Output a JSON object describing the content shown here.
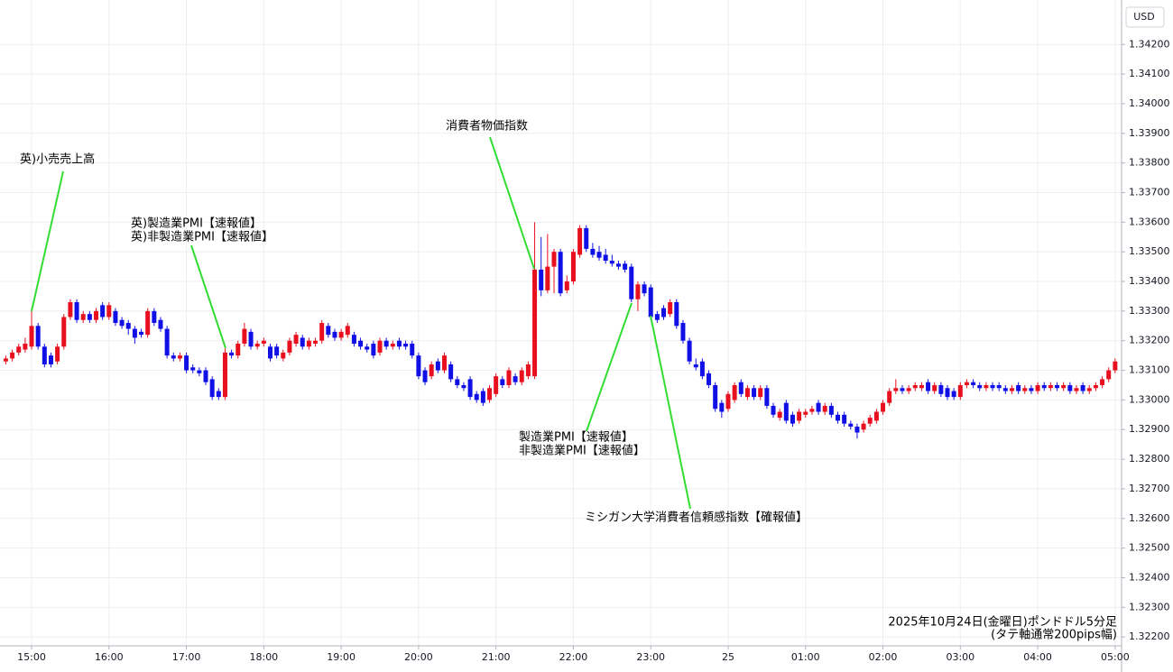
{
  "chart_data": {
    "type": "candlestick",
    "axis_unit": "USD",
    "footnote": [
      "2025年10月24日(金曜日)ポンドドル5分足",
      "(タテ軸通常200pips幅)"
    ],
    "up_color": "#e8101e",
    "down_color": "#1010e6",
    "annotation_color": "#33dd33",
    "grid": true,
    "xlim": [
      -0.9,
      173
    ],
    "xticks": [
      {
        "value": 4,
        "label": "15:00"
      },
      {
        "value": 16,
        "label": "16:00"
      },
      {
        "value": 28,
        "label": "17:00"
      },
      {
        "value": 40,
        "label": "18:00"
      },
      {
        "value": 52,
        "label": "19:00"
      },
      {
        "value": 64,
        "label": "20:00"
      },
      {
        "value": 76,
        "label": "21:00"
      },
      {
        "value": 88,
        "label": "22:00"
      },
      {
        "value": 100,
        "label": "23:00"
      },
      {
        "value": 112,
        "label": "25"
      },
      {
        "value": 124,
        "label": "01:00"
      },
      {
        "value": 136,
        "label": "02:00"
      },
      {
        "value": 148,
        "label": "03:00"
      },
      {
        "value": 160,
        "label": "04:00"
      },
      {
        "value": 172,
        "label": "05:00"
      }
    ],
    "ylim": [
      1.3217,
      1.3435
    ],
    "yticks": [
      {
        "value": 1.342,
        "label": "1.34200"
      },
      {
        "value": 1.341,
        "label": "1.34100"
      },
      {
        "value": 1.34,
        "label": "1.34000"
      },
      {
        "value": 1.339,
        "label": "1.33900"
      },
      {
        "value": 1.338,
        "label": "1.33800"
      },
      {
        "value": 1.337,
        "label": "1.33700"
      },
      {
        "value": 1.336,
        "label": "1.33600"
      },
      {
        "value": 1.335,
        "label": "1.33500"
      },
      {
        "value": 1.334,
        "label": "1.33400"
      },
      {
        "value": 1.333,
        "label": "1.33300"
      },
      {
        "value": 1.332,
        "label": "1.33200"
      },
      {
        "value": 1.331,
        "label": "1.33100"
      },
      {
        "value": 1.33,
        "label": "1.33000"
      },
      {
        "value": 1.329,
        "label": "1.32900"
      },
      {
        "value": 1.328,
        "label": "1.32800"
      },
      {
        "value": 1.327,
        "label": "1.32700"
      },
      {
        "value": 1.326,
        "label": "1.32600"
      },
      {
        "value": 1.325,
        "label": "1.32500"
      },
      {
        "value": 1.324,
        "label": "1.32400"
      },
      {
        "value": 1.323,
        "label": "1.32300"
      },
      {
        "value": 1.322,
        "label": "1.32200"
      }
    ],
    "annotations": [
      {
        "lines": [
          "英)小売売上高"
        ]
      },
      {
        "lines": [
          "英)製造業PMI【速報値】",
          "英)非製造業PMI【速報値】"
        ]
      },
      {
        "lines": [
          "消費者物価指数"
        ]
      },
      {
        "lines": [
          "製造業PMI【速報値】",
          "非製造業PMI【速報値】"
        ]
      },
      {
        "lines": [
          "ミシガン大学消費者信頼感指数【確報値】"
        ]
      }
    ],
    "candles": [
      [
        1.3313,
        1.3315,
        1.3312,
        1.3314
      ],
      [
        1.3314,
        1.3317,
        1.3313,
        1.3316
      ],
      [
        1.3316,
        1.3319,
        1.3315,
        1.3318
      ],
      [
        1.3317,
        1.3321,
        1.3316,
        1.3319
      ],
      [
        1.3318,
        1.3331,
        1.3317,
        1.3325
      ],
      [
        1.3325,
        1.3326,
        1.3317,
        1.3318
      ],
      [
        1.3318,
        1.3319,
        1.3311,
        1.3312
      ],
      [
        1.3315,
        1.3316,
        1.3311,
        1.3312
      ],
      [
        1.3313,
        1.3319,
        1.3312,
        1.3318
      ],
      [
        1.3318,
        1.3329,
        1.3317,
        1.3328
      ],
      [
        1.3328,
        1.3334,
        1.3327,
        1.3333
      ],
      [
        1.3333,
        1.3334,
        1.3326,
        1.3327
      ],
      [
        1.3327,
        1.333,
        1.3326,
        1.3329
      ],
      [
        1.3329,
        1.333,
        1.3326,
        1.3327
      ],
      [
        1.3327,
        1.3331,
        1.3326,
        1.333
      ],
      [
        1.3332,
        1.3333,
        1.3327,
        1.3328
      ],
      [
        1.3328,
        1.3333,
        1.3327,
        1.3332
      ],
      [
        1.333,
        1.3331,
        1.3325,
        1.3326
      ],
      [
        1.3327,
        1.3328,
        1.3324,
        1.3325
      ],
      [
        1.3326,
        1.3327,
        1.3322,
        1.3324
      ],
      [
        1.3324,
        1.3325,
        1.3319,
        1.3321
      ],
      [
        1.3323,
        1.3324,
        1.3321,
        1.3322
      ],
      [
        1.3322,
        1.3331,
        1.3321,
        1.333
      ],
      [
        1.333,
        1.3331,
        1.3325,
        1.3326
      ],
      [
        1.3327,
        1.3328,
        1.3323,
        1.3324
      ],
      [
        1.3324,
        1.3325,
        1.3314,
        1.3315
      ],
      [
        1.3315,
        1.3316,
        1.3313,
        1.3314
      ],
      [
        1.3314,
        1.3316,
        1.3313,
        1.3315
      ],
      [
        1.3315,
        1.3316,
        1.3309,
        1.331
      ],
      [
        1.3311,
        1.3312,
        1.3309,
        1.331
      ],
      [
        1.331,
        1.3311,
        1.3308,
        1.3309
      ],
      [
        1.331,
        1.3311,
        1.3305,
        1.3306
      ],
      [
        1.3307,
        1.3308,
        1.33,
        1.3301
      ],
      [
        1.3303,
        1.3304,
        1.33,
        1.3301
      ],
      [
        1.3301,
        1.3318,
        1.33,
        1.3316
      ],
      [
        1.3316,
        1.3317,
        1.3314,
        1.3315
      ],
      [
        1.3315,
        1.332,
        1.3314,
        1.3319
      ],
      [
        1.3319,
        1.3326,
        1.3318,
        1.3324
      ],
      [
        1.3323,
        1.3324,
        1.3317,
        1.3318
      ],
      [
        1.3318,
        1.332,
        1.3317,
        1.3319
      ],
      [
        1.3319,
        1.3321,
        1.3318,
        1.332
      ],
      [
        1.3318,
        1.3319,
        1.3313,
        1.3314
      ],
      [
        1.3318,
        1.3319,
        1.3314,
        1.3315
      ],
      [
        1.3314,
        1.3317,
        1.3313,
        1.3316
      ],
      [
        1.3316,
        1.3321,
        1.3315,
        1.332
      ],
      [
        1.3319,
        1.3323,
        1.3318,
        1.3322
      ],
      [
        1.3321,
        1.3322,
        1.3317,
        1.3318
      ],
      [
        1.3318,
        1.3321,
        1.3317,
        1.332
      ],
      [
        1.3319,
        1.3321,
        1.3318,
        1.332
      ],
      [
        1.332,
        1.3327,
        1.3319,
        1.3326
      ],
      [
        1.3325,
        1.3326,
        1.3321,
        1.3322
      ],
      [
        1.3323,
        1.3324,
        1.332,
        1.3321
      ],
      [
        1.3321,
        1.3324,
        1.332,
        1.3323
      ],
      [
        1.3322,
        1.3326,
        1.3321,
        1.3325
      ],
      [
        1.3322,
        1.3323,
        1.3318,
        1.3319
      ],
      [
        1.332,
        1.3321,
        1.3317,
        1.3318
      ],
      [
        1.3318,
        1.3319,
        1.3316,
        1.3317
      ],
      [
        1.3319,
        1.332,
        1.3314,
        1.3315
      ],
      [
        1.3316,
        1.3321,
        1.3315,
        1.332
      ],
      [
        1.332,
        1.3321,
        1.3317,
        1.3318
      ],
      [
        1.3318,
        1.332,
        1.3317,
        1.3319
      ],
      [
        1.332,
        1.3321,
        1.3317,
        1.3318
      ],
      [
        1.3319,
        1.332,
        1.3317,
        1.3318
      ],
      [
        1.3319,
        1.332,
        1.3314,
        1.3315
      ],
      [
        1.3315,
        1.3316,
        1.3307,
        1.3308
      ],
      [
        1.331,
        1.3311,
        1.3305,
        1.3306
      ],
      [
        1.3308,
        1.3313,
        1.3307,
        1.3312
      ],
      [
        1.3313,
        1.3314,
        1.3309,
        1.331
      ],
      [
        1.331,
        1.3316,
        1.3309,
        1.3315
      ],
      [
        1.3312,
        1.3313,
        1.3306,
        1.3307
      ],
      [
        1.3307,
        1.3308,
        1.3304,
        1.3305
      ],
      [
        1.3305,
        1.3306,
        1.3303,
        1.3304
      ],
      [
        1.3307,
        1.3308,
        1.33,
        1.3301
      ],
      [
        1.3302,
        1.3303,
        1.3299,
        1.33
      ],
      [
        1.3303,
        1.3304,
        1.3298,
        1.3299
      ],
      [
        1.33,
        1.3305,
        1.3299,
        1.3304
      ],
      [
        1.3302,
        1.3309,
        1.3301,
        1.3308
      ],
      [
        1.3307,
        1.3308,
        1.3304,
        1.3305
      ],
      [
        1.3305,
        1.3311,
        1.3304,
        1.331
      ],
      [
        1.3308,
        1.3309,
        1.3305,
        1.3306
      ],
      [
        1.3306,
        1.3311,
        1.3305,
        1.331
      ],
      [
        1.3308,
        1.3313,
        1.3307,
        1.3312
      ],
      [
        1.3308,
        1.336,
        1.3307,
        1.3344
      ],
      [
        1.3344,
        1.3355,
        1.3335,
        1.3337
      ],
      [
        1.3337,
        1.3356,
        1.3336,
        1.3345
      ],
      [
        1.3345,
        1.3351,
        1.3336,
        1.335
      ],
      [
        1.335,
        1.3351,
        1.3335,
        1.3336
      ],
      [
        1.3337,
        1.3342,
        1.3336,
        1.334
      ],
      [
        1.334,
        1.3351,
        1.3339,
        1.335
      ],
      [
        1.3349,
        1.3359,
        1.3348,
        1.3358
      ],
      [
        1.3358,
        1.3359,
        1.335,
        1.3351
      ],
      [
        1.3351,
        1.3353,
        1.3348,
        1.3349
      ],
      [
        1.335,
        1.3352,
        1.3347,
        1.3348
      ],
      [
        1.3349,
        1.3351,
        1.3346,
        1.3347
      ],
      [
        1.3347,
        1.3349,
        1.3345,
        1.3346
      ],
      [
        1.3346,
        1.3347,
        1.3344,
        1.3345
      ],
      [
        1.3346,
        1.3347,
        1.3343,
        1.3344
      ],
      [
        1.3345,
        1.3346,
        1.3333,
        1.3334
      ],
      [
        1.3334,
        1.334,
        1.333,
        1.3339
      ],
      [
        1.3339,
        1.334,
        1.3335,
        1.3336
      ],
      [
        1.3338,
        1.3339,
        1.3327,
        1.3328
      ],
      [
        1.3329,
        1.333,
        1.3326,
        1.3327
      ],
      [
        1.3331,
        1.3332,
        1.3327,
        1.3328
      ],
      [
        1.3329,
        1.3334,
        1.3328,
        1.3333
      ],
      [
        1.3333,
        1.3334,
        1.3324,
        1.3325
      ],
      [
        1.3326,
        1.3327,
        1.3319,
        1.332
      ],
      [
        1.332,
        1.3321,
        1.3312,
        1.3313
      ],
      [
        1.3312,
        1.3314,
        1.331,
        1.3311
      ],
      [
        1.3313,
        1.3314,
        1.3307,
        1.3308
      ],
      [
        1.3309,
        1.331,
        1.3304,
        1.3305
      ],
      [
        1.3305,
        1.3306,
        1.3296,
        1.3297
      ],
      [
        1.3299,
        1.33,
        1.3294,
        1.3296
      ],
      [
        1.3297,
        1.3303,
        1.3296,
        1.3302
      ],
      [
        1.33,
        1.3306,
        1.3299,
        1.3305
      ],
      [
        1.3306,
        1.3307,
        1.3301,
        1.3302
      ],
      [
        1.3301,
        1.3305,
        1.33,
        1.3304
      ],
      [
        1.3304,
        1.3305,
        1.33,
        1.3301
      ],
      [
        1.3301,
        1.3305,
        1.33,
        1.3304
      ],
      [
        1.3304,
        1.3305,
        1.3297,
        1.3298
      ],
      [
        1.3298,
        1.3299,
        1.3294,
        1.3295
      ],
      [
        1.3294,
        1.3297,
        1.3293,
        1.3296
      ],
      [
        1.3299,
        1.33,
        1.3292,
        1.3293
      ],
      [
        1.3295,
        1.3296,
        1.3291,
        1.3292
      ],
      [
        1.3293,
        1.3297,
        1.3292,
        1.3296
      ],
      [
        1.3295,
        1.3297,
        1.3294,
        1.3296
      ],
      [
        1.3296,
        1.3298,
        1.3295,
        1.3297
      ],
      [
        1.3299,
        1.33,
        1.3295,
        1.3296
      ],
      [
        1.3296,
        1.3299,
        1.3295,
        1.3298
      ],
      [
        1.3298,
        1.3299,
        1.3294,
        1.3295
      ],
      [
        1.3295,
        1.3296,
        1.3292,
        1.3293
      ],
      [
        1.3295,
        1.3296,
        1.3291,
        1.3292
      ],
      [
        1.3292,
        1.3293,
        1.329,
        1.3291
      ],
      [
        1.3291,
        1.3292,
        1.3287,
        1.3289
      ],
      [
        1.329,
        1.3293,
        1.3289,
        1.3292
      ],
      [
        1.3292,
        1.3295,
        1.3291,
        1.3294
      ],
      [
        1.3293,
        1.3297,
        1.3292,
        1.3296
      ],
      [
        1.3296,
        1.33,
        1.3295,
        1.3299
      ],
      [
        1.3299,
        1.3304,
        1.3298,
        1.3303
      ],
      [
        1.3303,
        1.3307,
        1.3302,
        1.3304
      ],
      [
        1.3304,
        1.3305,
        1.3302,
        1.3303
      ],
      [
        1.3303,
        1.3305,
        1.3302,
        1.3304
      ],
      [
        1.3304,
        1.3306,
        1.3303,
        1.3305
      ],
      [
        1.3304,
        1.3306,
        1.3303,
        1.3305
      ],
      [
        1.3306,
        1.3307,
        1.3302,
        1.3303
      ],
      [
        1.3303,
        1.3306,
        1.3302,
        1.3305
      ],
      [
        1.3305,
        1.3306,
        1.3301,
        1.3302
      ],
      [
        1.3304,
        1.3305,
        1.33,
        1.3301
      ],
      [
        1.3303,
        1.3304,
        1.33,
        1.3301
      ],
      [
        1.3301,
        1.3306,
        1.33,
        1.3305
      ],
      [
        1.3305,
        1.3307,
        1.3304,
        1.3306
      ],
      [
        1.3306,
        1.3307,
        1.3304,
        1.3305
      ],
      [
        1.3305,
        1.3306,
        1.3303,
        1.3304
      ],
      [
        1.3304,
        1.3306,
        1.3303,
        1.3305
      ],
      [
        1.3305,
        1.3306,
        1.3303,
        1.3304
      ],
      [
        1.3305,
        1.3306,
        1.3303,
        1.3304
      ],
      [
        1.3304,
        1.3305,
        1.3302,
        1.3303
      ],
      [
        1.3303,
        1.3305,
        1.3302,
        1.3304
      ],
      [
        1.3305,
        1.3306,
        1.3302,
        1.3303
      ],
      [
        1.3303,
        1.3305,
        1.3302,
        1.3304
      ],
      [
        1.3304,
        1.3305,
        1.3302,
        1.3303
      ],
      [
        1.3303,
        1.3306,
        1.3302,
        1.3305
      ],
      [
        1.3305,
        1.3306,
        1.3303,
        1.3304
      ],
      [
        1.3304,
        1.3306,
        1.3303,
        1.3305
      ],
      [
        1.3305,
        1.3306,
        1.3303,
        1.3304
      ],
      [
        1.3304,
        1.3306,
        1.3303,
        1.3305
      ],
      [
        1.3305,
        1.3306,
        1.3302,
        1.3303
      ],
      [
        1.3303,
        1.3305,
        1.3302,
        1.3304
      ],
      [
        1.3305,
        1.3306,
        1.3302,
        1.3303
      ],
      [
        1.3303,
        1.3305,
        1.3302,
        1.3304
      ],
      [
        1.3304,
        1.3306,
        1.3303,
        1.3305
      ],
      [
        1.3305,
        1.3308,
        1.3304,
        1.3307
      ],
      [
        1.3307,
        1.3311,
        1.3306,
        1.331
      ],
      [
        1.331,
        1.3314,
        1.3309,
        1.3313
      ]
    ]
  }
}
